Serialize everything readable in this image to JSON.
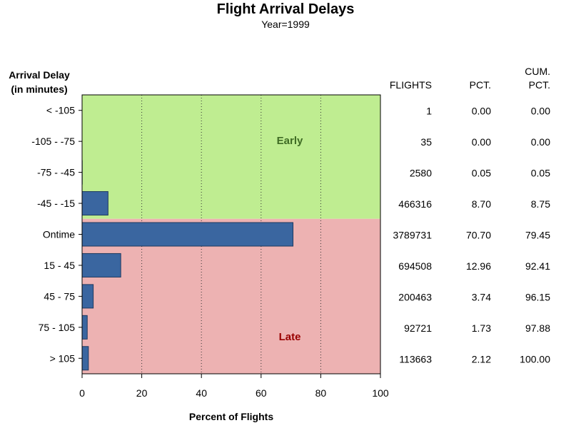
{
  "header": {
    "title": "Flight Arrival Delays",
    "subtitle": "Year=1999"
  },
  "chart_data": {
    "type": "bar",
    "orientation": "horizontal",
    "title": "Flight Arrival Delays",
    "subtitle": "Year=1999",
    "ylabel_lines": [
      "Arrival Delay",
      "(in minutes)"
    ],
    "xlabel": "Percent of Flights",
    "xlim": [
      0,
      100
    ],
    "xticks": [
      0,
      20,
      40,
      60,
      80,
      100
    ],
    "grid": "vertical dotted",
    "categories": [
      "< -105",
      "-105 - -75",
      "-75 - -45",
      "-45 - -15",
      "Ontime",
      "15 - 45",
      "45 - 75",
      "75 - 105",
      "> 105"
    ],
    "values": [
      0.0,
      0.0,
      0.05,
      8.7,
      70.7,
      12.96,
      3.74,
      1.73,
      2.12
    ],
    "regions": [
      {
        "label": "Early",
        "from_category": "< -105",
        "to_category": "-45 - -15",
        "color": "#bfed91",
        "text_color": "#3f6b24"
      },
      {
        "label": "Late",
        "from_category": "Ontime",
        "to_category": "> 105",
        "color": "#edb2b2",
        "text_color": "#990000"
      }
    ],
    "bar_color": "#3a66a0",
    "table": {
      "headers": [
        [
          "FLIGHTS"
        ],
        [
          "PCT."
        ],
        [
          "CUM.",
          "PCT."
        ]
      ],
      "flights": [
        "1",
        "35",
        "2580",
        "466316",
        "3789731",
        "694508",
        "200463",
        "92721",
        "113663"
      ],
      "pct": [
        "0.00",
        "0.00",
        "0.05",
        "8.70",
        "70.70",
        "12.96",
        "3.74",
        "1.73",
        "2.12"
      ],
      "cum_pct": [
        "0.00",
        "0.00",
        "0.05",
        "8.75",
        "79.45",
        "92.41",
        "96.15",
        "97.88",
        "100.00"
      ]
    }
  }
}
